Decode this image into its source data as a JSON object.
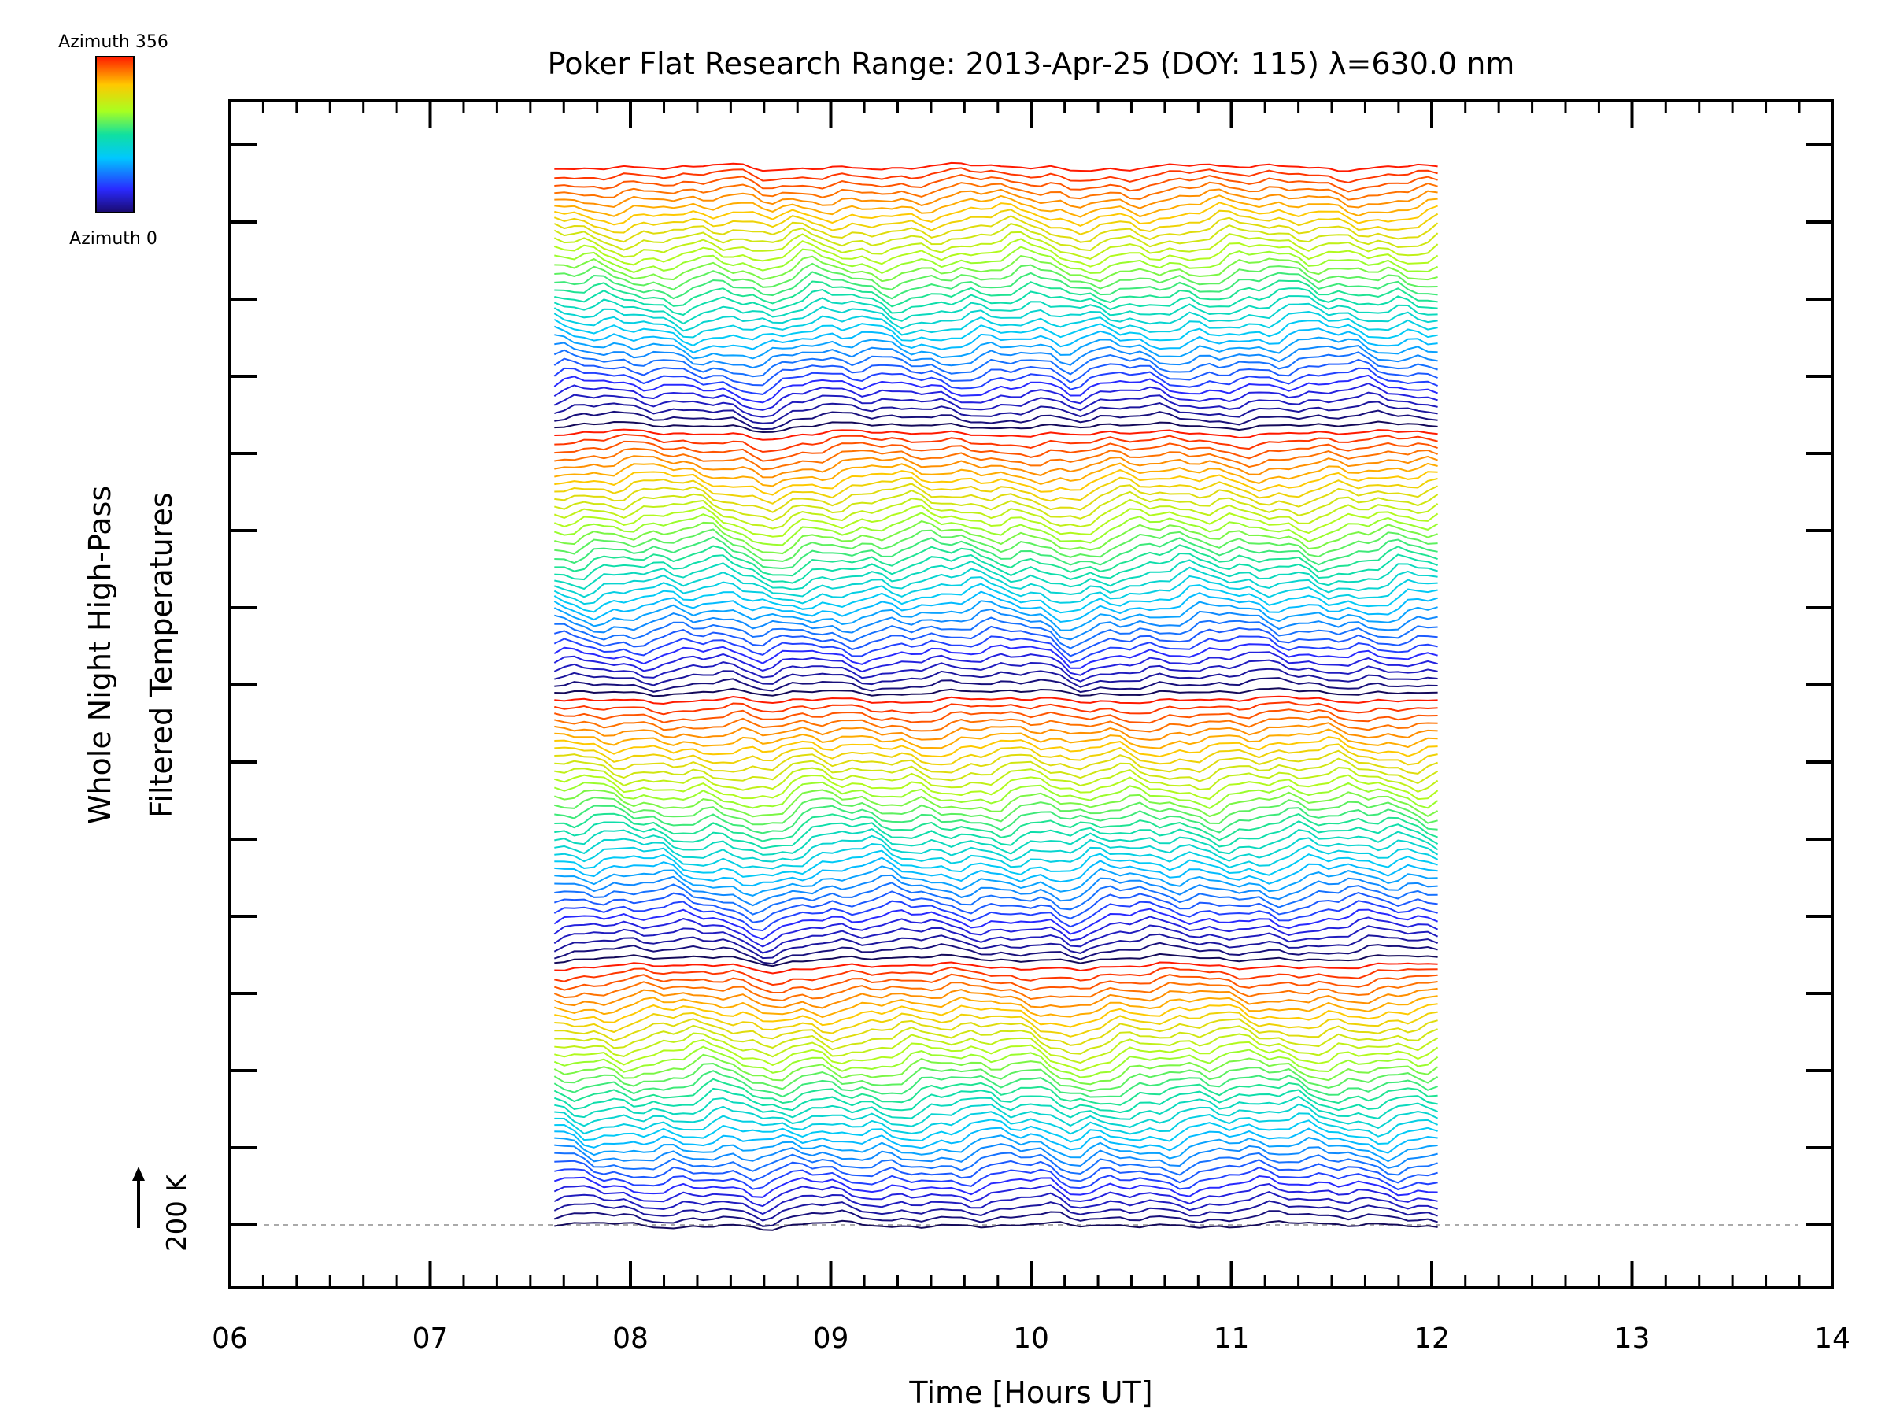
{
  "chart_data": {
    "type": "line",
    "title": "Poker Flat Research Range: 2013-Apr-25 (DOY: 115) λ=630.0 nm",
    "xlabel": "Time [Hours UT]",
    "ylabel": [
      "Whole Night High-Pass",
      "Filtered Temperatures"
    ],
    "xlim": [
      6,
      14
    ],
    "x_ticks": [
      "06",
      "07",
      "08",
      "09",
      "10",
      "11",
      "12",
      "13",
      "14"
    ],
    "x_minor_step": 0.1667,
    "y_major_tick_count": 15,
    "data_time_range": [
      7.62,
      12.03
    ],
    "trace_count": 136,
    "trace_offset_note": "stacked traces, vertical offset per trace",
    "scale_bar_label": "200 K",
    "baseline_dashed": true,
    "colorbar": {
      "top_label": "Azimuth 356",
      "bottom_label": "Azimuth 0",
      "min": 0,
      "max": 356,
      "colormap": "rainbow"
    },
    "grid": false,
    "legend": "colorbar top-left"
  }
}
